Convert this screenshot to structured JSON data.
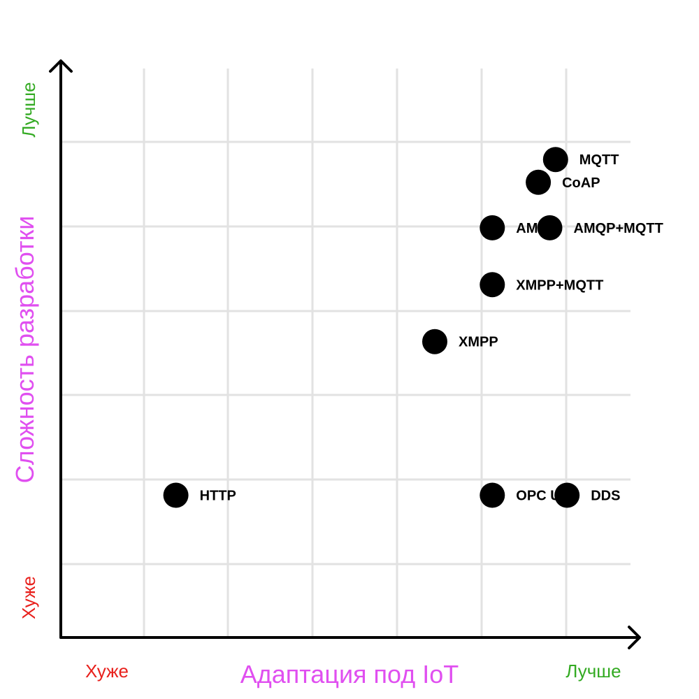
{
  "chart_data": {
    "type": "scatter",
    "xlabel": "Адаптация под IoT",
    "ylabel": "Сложность разработки",
    "x_low_label": "Хуже",
    "x_high_label": "Лучше",
    "y_low_label": "Хуже",
    "y_high_label": "Лучше",
    "xlim": [
      0,
      10
    ],
    "ylim": [
      0,
      10
    ],
    "grid": true,
    "points": [
      {
        "label": "MQTT",
        "x": 8.6,
        "y": 8.4
      },
      {
        "label": "CoAP",
        "x": 8.3,
        "y": 8.0
      },
      {
        "label": "AMQP",
        "x": 7.5,
        "y": 7.2
      },
      {
        "label": "AMQP+MQTT",
        "x": 8.5,
        "y": 7.2
      },
      {
        "label": "XMPP+MQTT",
        "x": 7.5,
        "y": 6.2
      },
      {
        "label": "XMPP",
        "x": 6.5,
        "y": 5.2
      },
      {
        "label": "HTTP",
        "x": 2.0,
        "y": 2.5
      },
      {
        "label": "OPC UA",
        "x": 7.5,
        "y": 2.5
      },
      {
        "label": "DDS",
        "x": 8.8,
        "y": 2.5
      }
    ],
    "colors": {
      "axis_title": "#e04ff0",
      "worse": "#e8201c",
      "better": "#33aa22",
      "point": "#000000",
      "grid": "#e2e2e2"
    }
  }
}
